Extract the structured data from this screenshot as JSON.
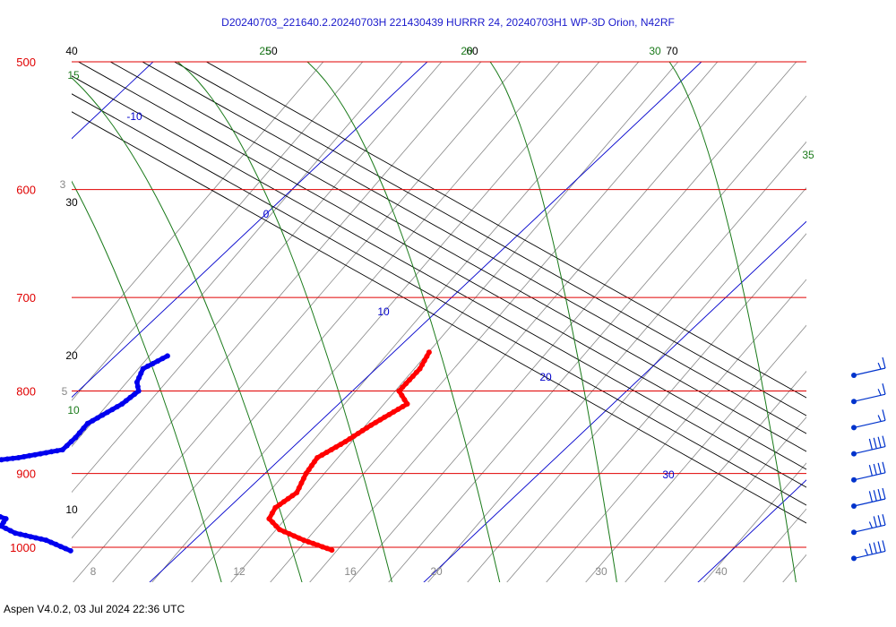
{
  "title": "D20240703_221640.2.20240703H 221430439 HURRR 24, 20240703H1 WP-3D Orion, N42RF",
  "footer": "Aspen V4.0.2, 03 Jul 2024  22:36 UTC",
  "colors": {
    "isobar": "#e00000",
    "isotherm": "#0000cc",
    "dry_adiabat": "#000000",
    "moist_adiabat": "#1a7a1a",
    "mixing_ratio": "#888888",
    "temperature": "#ff0000",
    "dewpoint": "#0000ee",
    "wind_barb": "#0033cc"
  },
  "chart_data": {
    "type": "skew-t log-p",
    "pressure_axis": {
      "ylim": [
        500,
        1000
      ],
      "scale": "log",
      "tick_labels": [
        "500",
        "600",
        "700",
        "800",
        "900",
        "1000"
      ]
    },
    "isotherm_labels": [
      "-10",
      "0",
      "10",
      "20",
      "30"
    ],
    "dry_adiabat_labels": [
      "40",
      "50",
      "60",
      "70",
      "30",
      "20",
      "10"
    ],
    "moist_adiabat_labels": [
      "25",
      "20",
      "30",
      "15",
      "35",
      "10"
    ],
    "mixing_ratio_labels": [
      "3",
      "5",
      "8",
      "12",
      "16",
      "20",
      "30",
      "40"
    ],
    "temperature_profile": [
      [
        757,
        11.3
      ],
      [
        775,
        11.6
      ],
      [
        800,
        11.7
      ],
      [
        815,
        12.5
      ],
      [
        840,
        12.0
      ],
      [
        860,
        11.7
      ],
      [
        880,
        11.3
      ],
      [
        900,
        11.5
      ],
      [
        925,
        11.9
      ],
      [
        945,
        11.7
      ],
      [
        960,
        11.9
      ],
      [
        975,
        12.7
      ],
      [
        990,
        14.0
      ],
      [
        1004,
        15.4
      ]
    ],
    "dewpoint_profile": [
      [
        761,
        1.9
      ],
      [
        775,
        1.5
      ],
      [
        790,
        1.8
      ],
      [
        800,
        2.2
      ],
      [
        815,
        2.1
      ],
      [
        838,
        1.6
      ],
      [
        855,
        1.7
      ],
      [
        870,
        1.7
      ],
      [
        880,
        0.4
      ],
      [
        888,
        -1.4
      ],
      [
        900,
        -3.2
      ],
      [
        920,
        -3.9
      ],
      [
        935,
        -2.0
      ],
      [
        950,
        1.2
      ],
      [
        960,
        2.3
      ],
      [
        970,
        2.4
      ],
      [
        980,
        3.2
      ],
      [
        990,
        4.6
      ],
      [
        1005,
        5.9
      ]
    ],
    "wind_barbs": [
      {
        "pressure_label": "800",
        "speed_kt": 15
      },
      {
        "pressure_label": "820",
        "speed_kt": 15
      },
      {
        "pressure_label": "850",
        "speed_kt": 15
      },
      {
        "pressure_label": "870",
        "speed_kt": 40
      },
      {
        "pressure_label": "900",
        "speed_kt": 40
      },
      {
        "pressure_label": "925",
        "speed_kt": 40
      },
      {
        "pressure_label": "950",
        "speed_kt": 35
      },
      {
        "pressure_label": "975",
        "speed_kt": 45
      }
    ]
  }
}
